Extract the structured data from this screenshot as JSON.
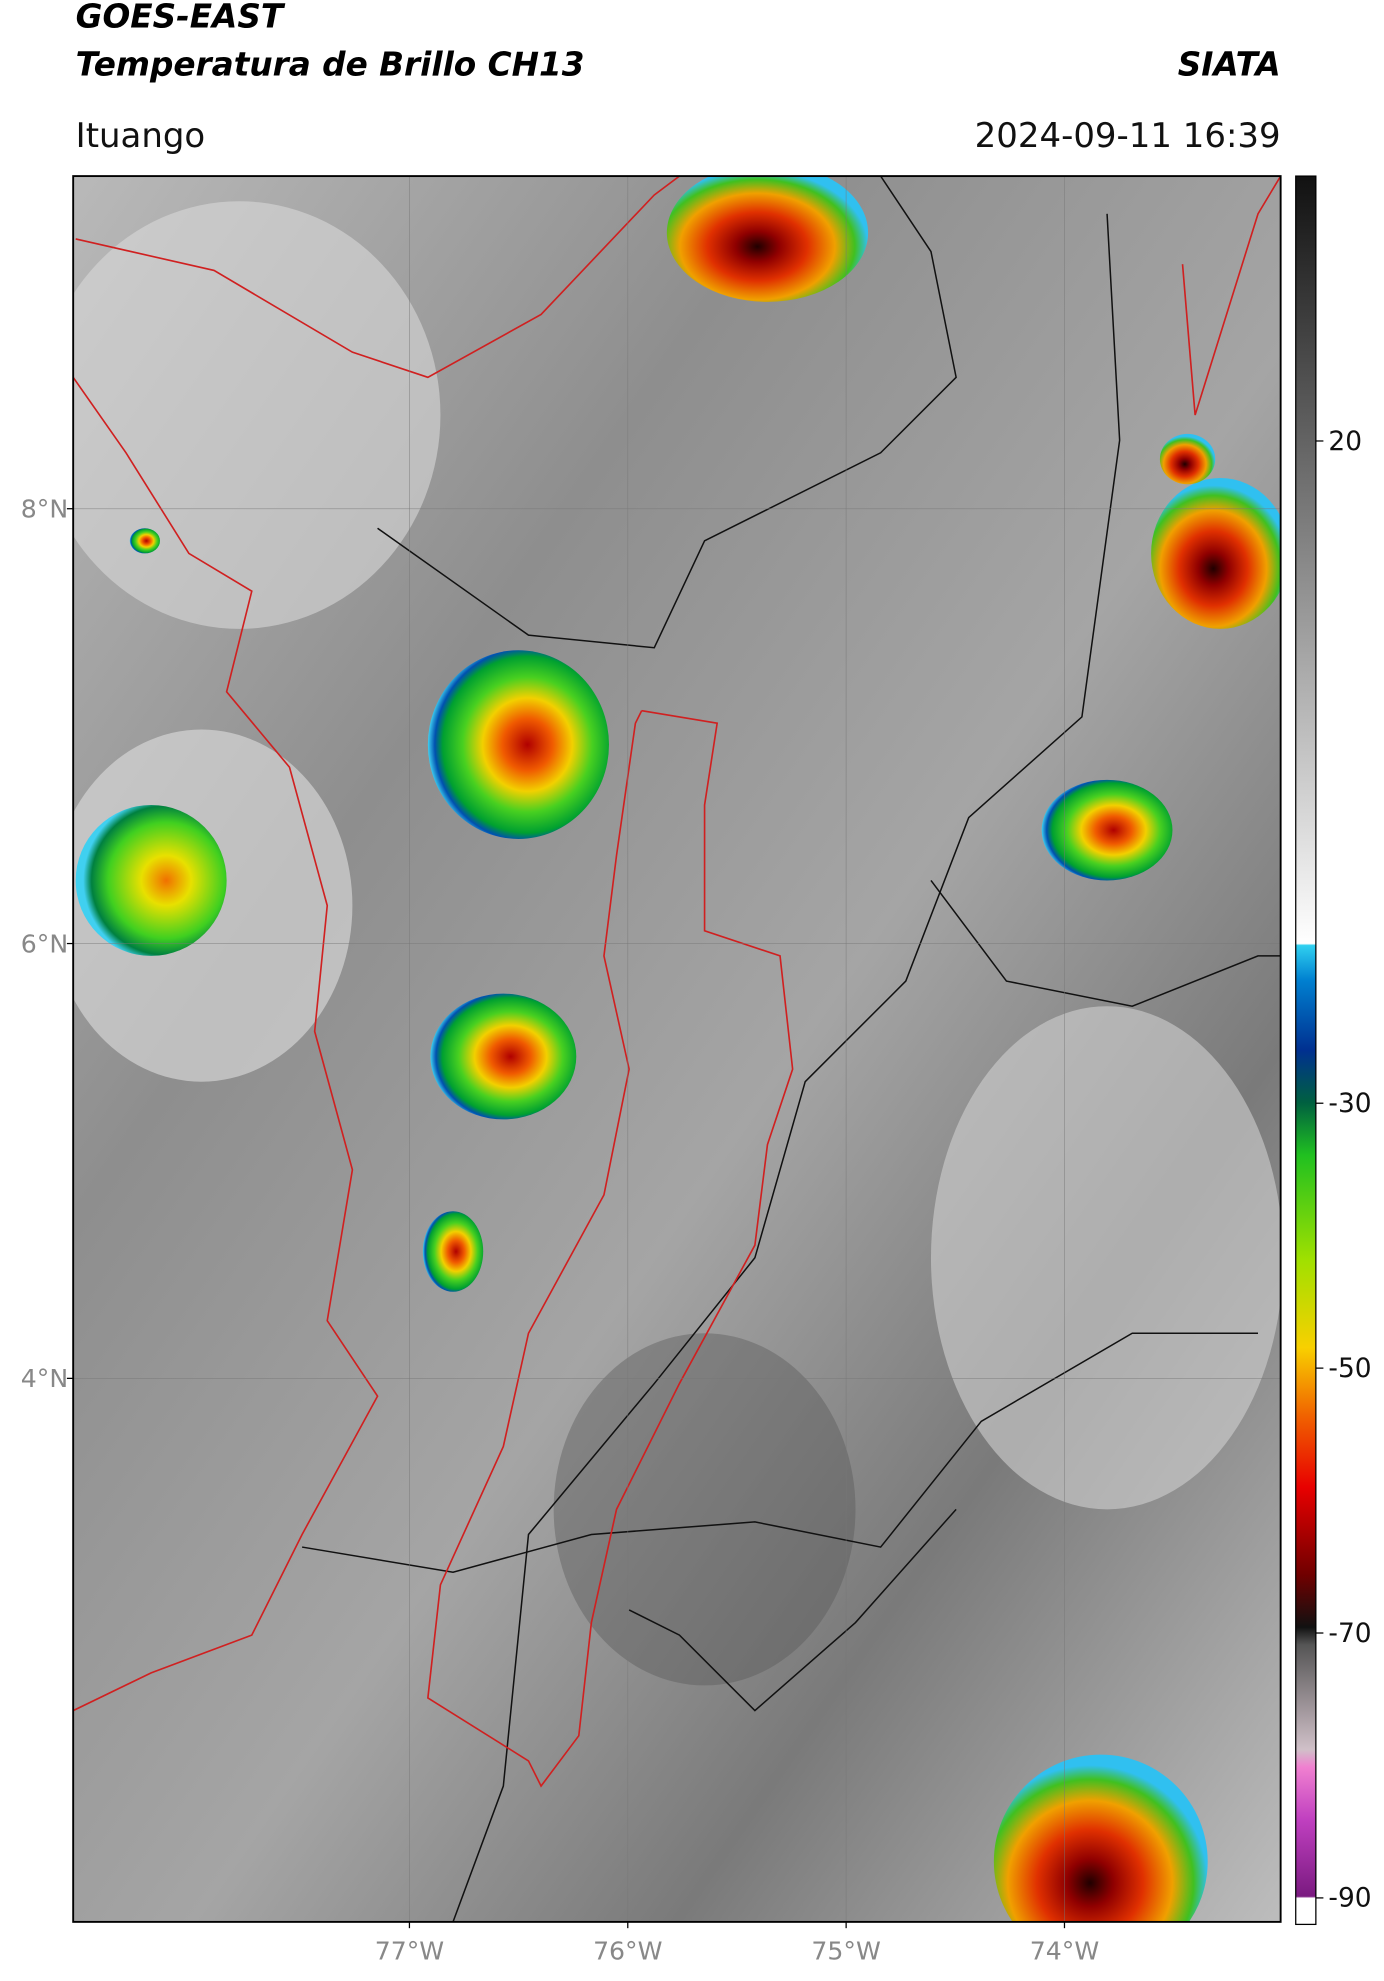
{
  "header": {
    "title": "GOES-EAST",
    "subtitle": "Temperatura de Brillo CH13",
    "source": "SIATA",
    "location": "Ituango",
    "timestamp": "2024-09-11 16:39"
  },
  "map": {
    "lat_lim": [
      1.5,
      9.53
    ],
    "lon_lim": [
      -78.54,
      -73.01
    ],
    "lat_ticks": [
      {
        "value": 8,
        "label": "8°N"
      },
      {
        "value": 6,
        "label": "6°N"
      },
      {
        "value": 4,
        "label": "4°N"
      }
    ],
    "lon_ticks": [
      {
        "value": -77,
        "label": "77°W"
      },
      {
        "value": -76,
        "label": "76°W"
      },
      {
        "value": -75,
        "label": "75°W"
      },
      {
        "value": -74,
        "label": "74°W"
      }
    ],
    "grid": true
  },
  "colorbar": {
    "lim": [
      -92,
      40
    ],
    "ticks": [
      20,
      -30,
      -50,
      -70,
      -90
    ]
  }
}
